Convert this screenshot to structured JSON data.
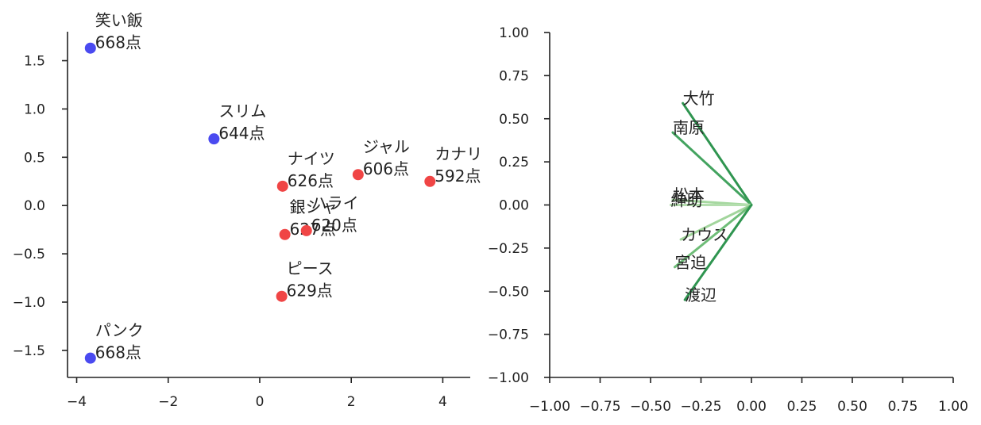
{
  "chart_data": [
    {
      "type": "scatter",
      "xlim": [
        -4.2,
        4.6
      ],
      "ylim": [
        -1.78,
        1.8
      ],
      "xticks": [
        -4,
        -2,
        0,
        2,
        4
      ],
      "xtick_labels": [
        "−4",
        "−2",
        "0",
        "2",
        "4"
      ],
      "yticks": [
        1.5,
        1.0,
        0.5,
        0.0,
        -0.5,
        -1.0,
        -1.5
      ],
      "ytick_labels": [
        "1.5",
        "1.0",
        "0.5",
        "0.0",
        "−0.5",
        "−1.0",
        "−1.5"
      ],
      "grid": false,
      "colors": {
        "blue": "#4a4af0",
        "red": "#f04545"
      },
      "points": [
        {
          "name": "笑い飯",
          "score": "668点",
          "x": -3.7,
          "y": 1.63,
          "color": "blue"
        },
        {
          "name": "スリム",
          "score": "644点",
          "x": -1.0,
          "y": 0.69,
          "color": "blue"
        },
        {
          "name": "パンク",
          "score": "668点",
          "x": -3.7,
          "y": -1.58,
          "color": "blue"
        },
        {
          "name": "ナイツ",
          "score": "626点",
          "x": 0.5,
          "y": 0.2,
          "color": "red"
        },
        {
          "name": "ジャル",
          "score": "606点",
          "x": 2.15,
          "y": 0.32,
          "color": "red"
        },
        {
          "name": "カナリ",
          "score": "592点",
          "x": 3.72,
          "y": 0.25,
          "color": "red"
        },
        {
          "name": "銀シャ",
          "score": "627点",
          "x": 0.55,
          "y": -0.3,
          "color": "red"
        },
        {
          "name": "ハライ",
          "score": "620点",
          "x": 1.02,
          "y": -0.26,
          "color": "red"
        },
        {
          "name": "ピース",
          "score": "629点",
          "x": 0.48,
          "y": -0.94,
          "color": "red"
        }
      ]
    },
    {
      "type": "line",
      "subtype": "loading-vectors",
      "xlim": [
        -1.0,
        1.0
      ],
      "ylim": [
        -1.0,
        1.0
      ],
      "xticks": [
        -1.0,
        -0.75,
        -0.5,
        -0.25,
        0.0,
        0.25,
        0.5,
        0.75,
        1.0
      ],
      "xtick_labels": [
        "−1.00",
        "−0.75",
        "−0.50",
        "−0.25",
        "0.00",
        "0.25",
        "0.50",
        "0.75",
        "1.00"
      ],
      "yticks": [
        1.0,
        0.75,
        0.5,
        0.25,
        0.0,
        -0.25,
        -0.5,
        -0.75,
        -1.0
      ],
      "ytick_labels": [
        "1.00",
        "0.75",
        "0.50",
        "0.25",
        "0.00",
        "−0.25",
        "−0.50",
        "−0.75",
        "−1.00"
      ],
      "grid": false,
      "vectors": [
        {
          "name": "大竹",
          "x": -0.34,
          "y": 0.59,
          "color": "#2f9550"
        },
        {
          "name": "南原",
          "x": -0.39,
          "y": 0.42,
          "color": "#43a35f"
        },
        {
          "name": "松本",
          "x": -0.39,
          "y": 0.03,
          "color": "#a6d8a0"
        },
        {
          "name": "紳助",
          "x": -0.4,
          "y": 0.0,
          "color": "#b4deae"
        },
        {
          "name": "カウス",
          "x": -0.35,
          "y": -0.2,
          "color": "#a2d59c"
        },
        {
          "name": "宮迫",
          "x": -0.38,
          "y": -0.36,
          "color": "#6fbd78"
        },
        {
          "name": "渡辺",
          "x": -0.33,
          "y": -0.55,
          "color": "#2f9550"
        }
      ]
    }
  ]
}
